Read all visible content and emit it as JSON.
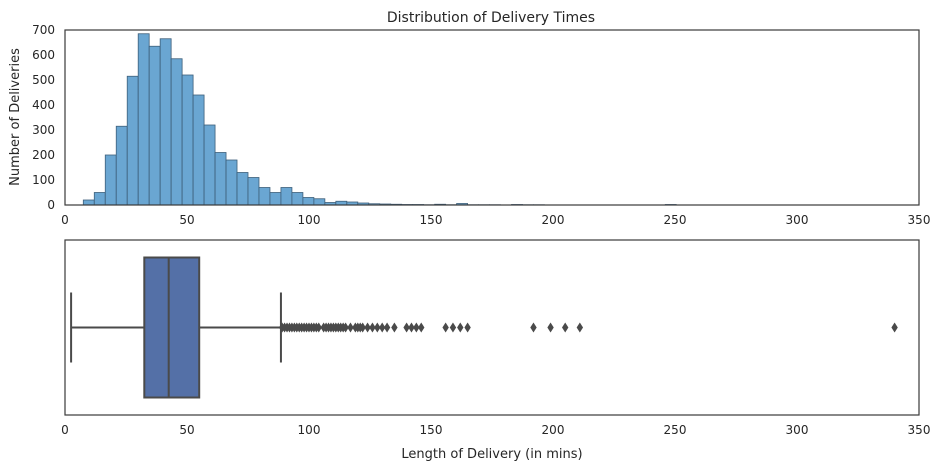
{
  "chart_data": [
    {
      "type": "bar",
      "title": "Distribution of Delivery Times",
      "xlabel": "",
      "ylabel": "Number of Deliveries",
      "xlim": [
        0,
        350
      ],
      "ylim": [
        0,
        700
      ],
      "xticks": [
        0,
        50,
        100,
        150,
        200,
        250,
        300,
        350
      ],
      "yticks": [
        0,
        100,
        200,
        300,
        400,
        500,
        600,
        700
      ],
      "bin_width": 4.5,
      "bin_start": 3,
      "values": [
        0,
        20,
        50,
        200,
        315,
        515,
        685,
        635,
        665,
        585,
        520,
        440,
        320,
        210,
        180,
        130,
        110,
        70,
        50,
        70,
        50,
        30,
        25,
        10,
        15,
        12,
        8,
        5,
        4,
        3,
        2,
        2,
        1,
        3,
        1,
        6,
        1,
        1,
        1,
        0,
        2,
        1,
        1,
        0,
        0,
        0,
        0,
        0,
        0,
        0,
        0,
        0,
        0,
        0,
        2
      ],
      "color": "#6aa6d2"
    },
    {
      "type": "box",
      "xlabel": "Length of Delivery (in mins)",
      "xlim": [
        0,
        350
      ],
      "xticks": [
        0,
        50,
        100,
        150,
        200,
        250,
        300,
        350
      ],
      "whisker_low": 2.5,
      "q1": 32.5,
      "median": 42.5,
      "q3": 55,
      "whisker_high": 88.5,
      "outliers": [
        89,
        90,
        91,
        92,
        93,
        94,
        95,
        96,
        97,
        98,
        99,
        100,
        101,
        102,
        103,
        104,
        106,
        107,
        108,
        109,
        110,
        111,
        112,
        113,
        114,
        115,
        117,
        119,
        120,
        121,
        122,
        124,
        126,
        128,
        130,
        132,
        135,
        140,
        142,
        144,
        146,
        156,
        159,
        162,
        165,
        192,
        199,
        205,
        211,
        340
      ],
      "color": "#5470a7"
    }
  ]
}
